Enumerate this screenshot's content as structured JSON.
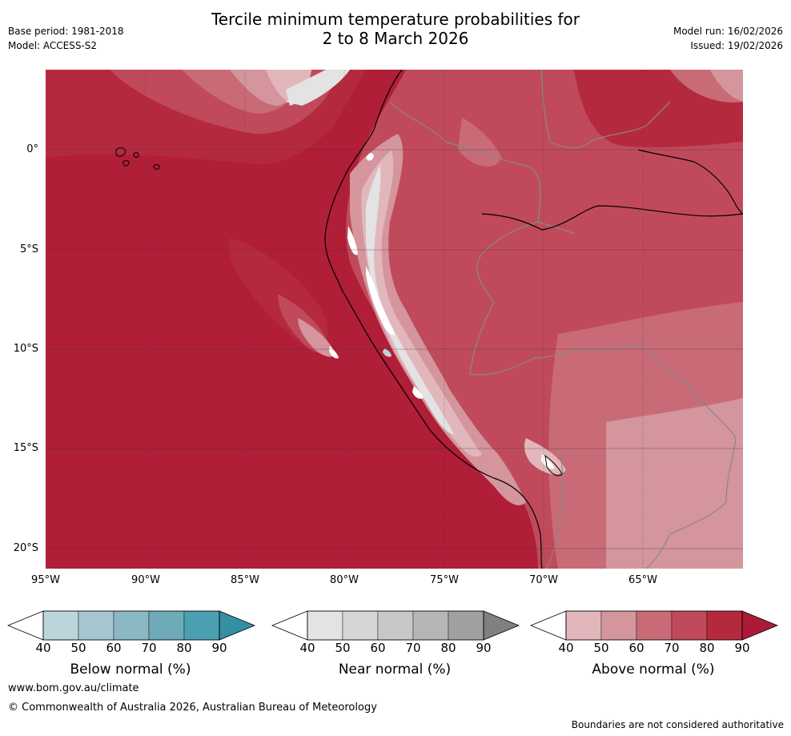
{
  "title_line1": "Tercile minimum temperature probabilities for",
  "title_line2": "2 to 8 March 2026",
  "meta_left": {
    "base_period": "Base period: 1981-2018",
    "model": "Model: ACCESS-S2"
  },
  "meta_right": {
    "model_run": "Model run: 16/02/2026",
    "issued": "Issued: 19/02/2026"
  },
  "map": {
    "lat_labels": [
      "0°",
      "5°S",
      "10°S",
      "15°S",
      "20°S"
    ],
    "lon_labels": [
      "95°W",
      "90°W",
      "85°W",
      "80°W",
      "75°W",
      "70°W",
      "65°W"
    ],
    "colors": {
      "above_90": "#b01e38",
      "above_80": "#b5293f",
      "above_70": "#c04a5b",
      "above_60": "#c86b76",
      "above_50": "#d4959d",
      "above_40": "#e2b7bc",
      "near_40": "#e3e3e3",
      "white": "#ffffff",
      "below_40": "#bcd5da",
      "country_border": "#888888",
      "coastline": "#000000",
      "gridline": "#3a3a3a"
    }
  },
  "legends": [
    {
      "title": "Below normal (%)",
      "ticks": [
        "40",
        "50",
        "60",
        "70",
        "80",
        "90"
      ],
      "colors": [
        "#bcd5da",
        "#a6c7cf",
        "#8bb8c3",
        "#6eaab7",
        "#4a9fb0",
        "#338fa2"
      ]
    },
    {
      "title": "Near normal (%)",
      "ticks": [
        "40",
        "50",
        "60",
        "70",
        "80",
        "90"
      ],
      "colors": [
        "#e3e3e3",
        "#d6d6d6",
        "#c8c8c8",
        "#b6b6b6",
        "#a0a0a0",
        "#808080"
      ]
    },
    {
      "title": "Above normal (%)",
      "ticks": [
        "40",
        "50",
        "60",
        "70",
        "80",
        "90"
      ],
      "colors": [
        "#e2b7bc",
        "#d4959d",
        "#c86b76",
        "#c04a5b",
        "#b5293f",
        "#ab1b37"
      ]
    }
  ],
  "footer": {
    "website": "www.bom.gov.au/climate",
    "copyright": "© Commonwealth of Australia 2026, Australian Bureau of Meteorology",
    "disclaimer": "Boundaries are not considered authoritative"
  }
}
